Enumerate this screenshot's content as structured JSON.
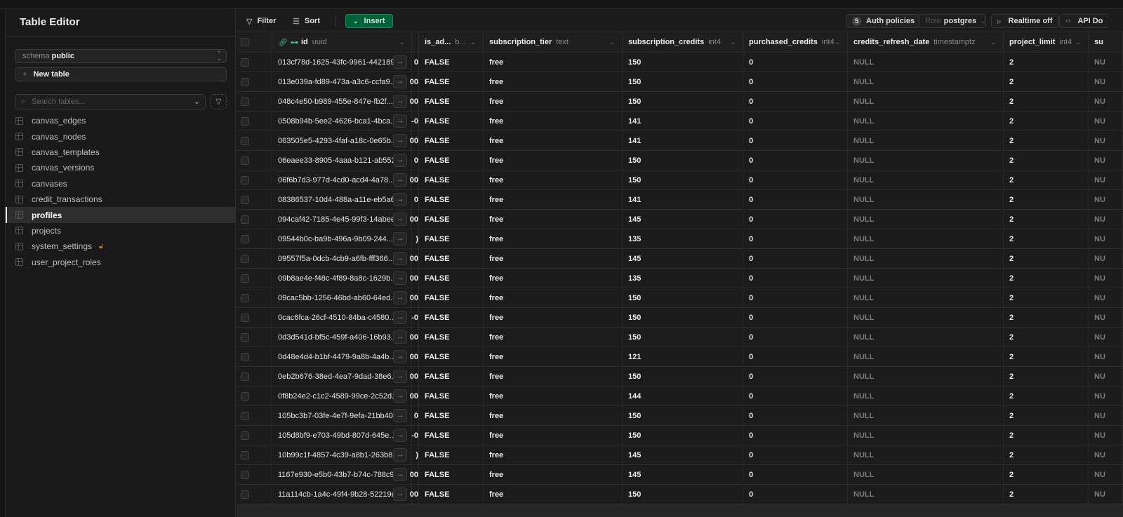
{
  "sidebar": {
    "title": "Table Editor",
    "schema_label": "schema",
    "schema_value": "public",
    "new_table": "New table",
    "search_placeholder": "Search tables...",
    "tables": [
      {
        "name": "canvas_edges"
      },
      {
        "name": "canvas_nodes"
      },
      {
        "name": "canvas_templates"
      },
      {
        "name": "canvas_versions"
      },
      {
        "name": "canvases"
      },
      {
        "name": "credit_transactions"
      },
      {
        "name": "profiles",
        "active": true
      },
      {
        "name": "projects"
      },
      {
        "name": "system_settings",
        "locked": true
      },
      {
        "name": "user_project_roles"
      }
    ]
  },
  "toolbar": {
    "filter": "Filter",
    "sort": "Sort",
    "insert": "Insert",
    "auth_count": "5",
    "auth_policies": "Auth policies",
    "role_label": "Role",
    "role_value": "postgres",
    "realtime": "Realtime off",
    "api_docs": "API Do"
  },
  "colors": {
    "insert": "#006239",
    "accent": "#3ecf8e",
    "lock": "#c07a18"
  },
  "columns": [
    {
      "name": "id",
      "type": "uuid"
    },
    {
      "name": "is_ad...",
      "type": "b..."
    },
    {
      "name": "subscription_tier",
      "type": "text"
    },
    {
      "name": "subscription_credits",
      "type": "int4"
    },
    {
      "name": "purchased_credits",
      "type": "int4"
    },
    {
      "name": "credits_refresh_date",
      "type": "timestamptz"
    },
    {
      "name": "project_limit",
      "type": "int4"
    },
    {
      "name": "su",
      "type": ""
    }
  ],
  "rows": [
    {
      "id": "013cf78d-1625-43fc-9961-442189...",
      "frag": "0",
      "admin": "FALSE",
      "tier": "free",
      "credits": "150",
      "purchased": "0",
      "refresh": "NULL",
      "limit": "2",
      "next": "NU"
    },
    {
      "id": "013e039a-fd89-473a-a3c6-ccfa9...",
      "frag": "00",
      "admin": "FALSE",
      "tier": "free",
      "credits": "150",
      "purchased": "0",
      "refresh": "NULL",
      "limit": "2",
      "next": "NU"
    },
    {
      "id": "048c4e50-b989-455e-847e-fb2f...",
      "frag": "00",
      "admin": "FALSE",
      "tier": "free",
      "credits": "150",
      "purchased": "0",
      "refresh": "NULL",
      "limit": "2",
      "next": "NU"
    },
    {
      "id": "0508b94b-5ee2-4626-bca1-4bca...",
      "frag": "-0",
      "admin": "FALSE",
      "tier": "free",
      "credits": "141",
      "purchased": "0",
      "refresh": "NULL",
      "limit": "2",
      "next": "NU"
    },
    {
      "id": "063505e5-4293-4faf-a18c-0e65b...",
      "frag": "00",
      "admin": "FALSE",
      "tier": "free",
      "credits": "141",
      "purchased": "0",
      "refresh": "NULL",
      "limit": "2",
      "next": "NU"
    },
    {
      "id": "06eaee33-8905-4aaa-b121-ab552...",
      "frag": "0",
      "admin": "FALSE",
      "tier": "free",
      "credits": "150",
      "purchased": "0",
      "refresh": "NULL",
      "limit": "2",
      "next": "NU"
    },
    {
      "id": "06f6b7d3-977d-4cd0-acd4-4a78...",
      "frag": "00",
      "admin": "FALSE",
      "tier": "free",
      "credits": "150",
      "purchased": "0",
      "refresh": "NULL",
      "limit": "2",
      "next": "NU"
    },
    {
      "id": "08386537-10d4-488a-a11e-eb5a6...",
      "frag": "0",
      "admin": "FALSE",
      "tier": "free",
      "credits": "141",
      "purchased": "0",
      "refresh": "NULL",
      "limit": "2",
      "next": "NU"
    },
    {
      "id": "094caf42-7185-4e45-99f3-14abee...",
      "frag": "00",
      "admin": "FALSE",
      "tier": "free",
      "credits": "145",
      "purchased": "0",
      "refresh": "NULL",
      "limit": "2",
      "next": "NU"
    },
    {
      "id": "09544b0c-ba9b-496a-9b09-244...",
      "frag": ")",
      "admin": "FALSE",
      "tier": "free",
      "credits": "135",
      "purchased": "0",
      "refresh": "NULL",
      "limit": "2",
      "next": "NU"
    },
    {
      "id": "09557f5a-0dcb-4cb9-a6fb-fff366...",
      "frag": "00",
      "admin": "FALSE",
      "tier": "free",
      "credits": "145",
      "purchased": "0",
      "refresh": "NULL",
      "limit": "2",
      "next": "NU"
    },
    {
      "id": "09b8ae4e-f48c-4f89-8a8c-1629b...",
      "frag": "00",
      "admin": "FALSE",
      "tier": "free",
      "credits": "135",
      "purchased": "0",
      "refresh": "NULL",
      "limit": "2",
      "next": "NU"
    },
    {
      "id": "09cac5bb-1256-46bd-ab60-64ed...",
      "frag": "00",
      "admin": "FALSE",
      "tier": "free",
      "credits": "150",
      "purchased": "0",
      "refresh": "NULL",
      "limit": "2",
      "next": "NU"
    },
    {
      "id": "0cac6fca-26cf-4510-84ba-c4580...",
      "frag": "-0",
      "admin": "FALSE",
      "tier": "free",
      "credits": "150",
      "purchased": "0",
      "refresh": "NULL",
      "limit": "2",
      "next": "NU"
    },
    {
      "id": "0d3d541d-bf5c-459f-a406-16b93...",
      "frag": "00",
      "admin": "FALSE",
      "tier": "free",
      "credits": "150",
      "purchased": "0",
      "refresh": "NULL",
      "limit": "2",
      "next": "NU"
    },
    {
      "id": "0d48e4d4-b1bf-4479-9a8b-4a4b...",
      "frag": "00",
      "admin": "FALSE",
      "tier": "free",
      "credits": "121",
      "purchased": "0",
      "refresh": "NULL",
      "limit": "2",
      "next": "NU"
    },
    {
      "id": "0eb2b676-38ed-4ea7-9dad-38e6...",
      "frag": "00",
      "admin": "FALSE",
      "tier": "free",
      "credits": "150",
      "purchased": "0",
      "refresh": "NULL",
      "limit": "2",
      "next": "NU"
    },
    {
      "id": "0f8b24e2-c1c2-4589-99ce-2c52d...",
      "frag": "00",
      "admin": "FALSE",
      "tier": "free",
      "credits": "144",
      "purchased": "0",
      "refresh": "NULL",
      "limit": "2",
      "next": "NU"
    },
    {
      "id": "105bc3b7-03fe-4e7f-9efa-21bb40...",
      "frag": "0",
      "admin": "FALSE",
      "tier": "free",
      "credits": "150",
      "purchased": "0",
      "refresh": "NULL",
      "limit": "2",
      "next": "NU"
    },
    {
      "id": "105d8bf9-e703-49bd-807d-645e...",
      "frag": "-0",
      "admin": "FALSE",
      "tier": "free",
      "credits": "150",
      "purchased": "0",
      "refresh": "NULL",
      "limit": "2",
      "next": "NU"
    },
    {
      "id": "10b99c1f-4857-4c39-a8b1-263b8...",
      "frag": ")",
      "admin": "FALSE",
      "tier": "free",
      "credits": "145",
      "purchased": "0",
      "refresh": "NULL",
      "limit": "2",
      "next": "NU"
    },
    {
      "id": "1167e930-e5b0-43b7-b74c-788c9...",
      "frag": "00",
      "admin": "FALSE",
      "tier": "free",
      "credits": "145",
      "purchased": "0",
      "refresh": "NULL",
      "limit": "2",
      "next": "NU"
    },
    {
      "id": "11a114cb-1a4c-49f4-9b28-52219ec...",
      "frag": "00",
      "admin": "FALSE",
      "tier": "free",
      "credits": "150",
      "purchased": "0",
      "refresh": "NULL",
      "limit": "2",
      "next": "NU"
    }
  ]
}
